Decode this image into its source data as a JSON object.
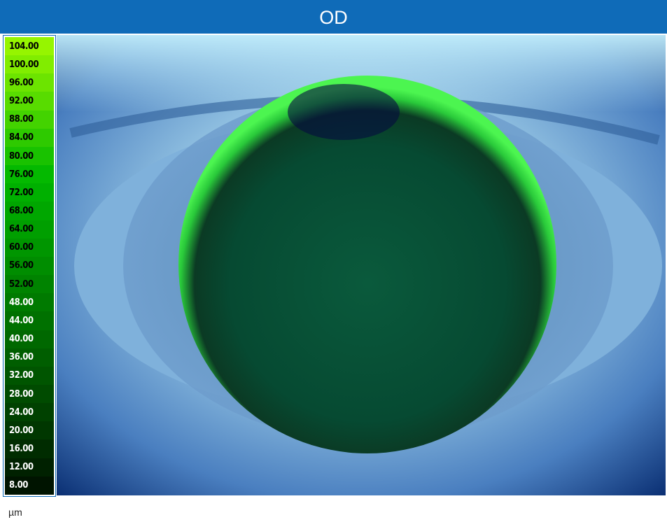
{
  "header": {
    "title": "OD"
  },
  "scale": {
    "labels": [
      "104.00",
      "100.00",
      "96.00",
      "92.00",
      "88.00",
      "84.00",
      "80.00",
      "76.00",
      "72.00",
      "68.00",
      "64.00",
      "60.00",
      "56.00",
      "52.00",
      "48.00",
      "44.00",
      "40.00",
      "36.00",
      "32.00",
      "28.00",
      "24.00",
      "20.00",
      "16.00",
      "12.00",
      "8.00"
    ],
    "unit": "µm"
  }
}
